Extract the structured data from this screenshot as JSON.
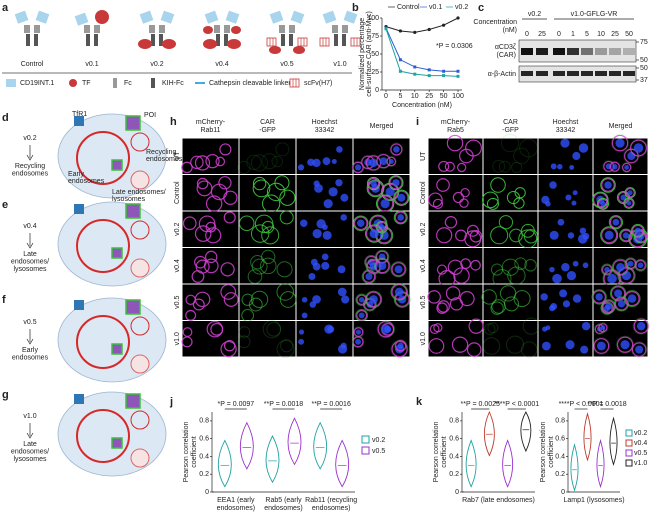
{
  "panel_labels": [
    "a",
    "b",
    "c",
    "d",
    "e",
    "f",
    "g",
    "h",
    "i",
    "j",
    "k"
  ],
  "panel_a": {
    "constructs": [
      "Control",
      "v0.1",
      "v0.2",
      "v0.4",
      "v0.5",
      "v1.0"
    ],
    "label_colors": [
      "#222222",
      "#2c5fd6",
      "#1fa3a3",
      "#c0392b",
      "#9b30d0",
      "#222222"
    ],
    "legend": [
      "CD19INT.1",
      "TF",
      "Fc",
      "KIH-Fc",
      "Cathepsin cleavable linker",
      "scFv(H7)"
    ]
  },
  "panel_b": {
    "type": "line",
    "y_label": [
      "Normalized percentage",
      "cell-surface CAR (anti-Myc)"
    ],
    "x_label": "Concentration (nM)",
    "categories": [
      "0",
      "5",
      "10",
      "25",
      "50",
      "100"
    ],
    "series": [
      {
        "name": "Control",
        "color": "#222222",
        "values": [
          88,
          82,
          80,
          84,
          90,
          100
        ]
      },
      {
        "name": "v0.1",
        "color": "#2c5fd6",
        "values": [
          86,
          42,
          32,
          28,
          26,
          26
        ]
      },
      {
        "name": "v0.2",
        "color": "#1fa3a3",
        "values": [
          85,
          26,
          22,
          20,
          20,
          19
        ]
      }
    ],
    "ylim": [
      0,
      100
    ],
    "yticks": [
      0,
      25,
      50,
      75,
      100
    ],
    "annotation": "*P = 0.0306"
  },
  "panel_c": {
    "concentration_label": [
      "Concentration",
      "(nM)"
    ],
    "groups": [
      {
        "name": "v0.2",
        "lanes": [
          "0",
          "25"
        ]
      },
      {
        "name": "v1.0-GFLG-VR",
        "lanes": [
          "0",
          "1",
          "5",
          "10",
          "25",
          "50"
        ]
      }
    ],
    "blots": [
      {
        "label": [
          "αCD3ζ",
          "(CAR)"
        ],
        "markers": [
          "75",
          "50"
        ]
      },
      {
        "label": [
          "α-β-Actin"
        ],
        "markers": [
          "50",
          "37"
        ]
      }
    ]
  },
  "panel_d": {
    "construct": "v0.2",
    "destination": [
      "Recycling",
      "endosomes"
    ],
    "tfr1": "TfR1",
    "poi": "POI",
    "recycling": [
      "Recycling",
      "endosomes"
    ],
    "early": [
      "Early",
      "endosomes"
    ],
    "late": [
      "Late endosomes/",
      "lysosomes"
    ]
  },
  "panel_e": {
    "construct": "v0.4",
    "destination": [
      "Late",
      "endosomes/",
      "lysosomes"
    ]
  },
  "panel_f": {
    "construct": "v0.5",
    "destination": [
      "Early",
      "endosomes"
    ]
  },
  "panel_g": {
    "construct": "v1.0",
    "destination": [
      "Late",
      "endosomes/",
      "lysosomes"
    ]
  },
  "panel_h": {
    "channels": [
      [
        "mCherry-",
        "Rab11"
      ],
      [
        "CAR",
        "-GFP"
      ],
      [
        "Hoechst",
        "33342"
      ],
      [
        "Merged"
      ]
    ],
    "rows": [
      "UT",
      "Control",
      "v0.2",
      "v0.4",
      "v0.5",
      "v1.0"
    ]
  },
  "panel_i": {
    "channels": [
      [
        "mCherry-",
        "Rab5"
      ],
      [
        "CAR",
        "-GFP"
      ],
      [
        "Hoechst",
        "33342"
      ],
      [
        "Merged"
      ]
    ],
    "rows": [
      "UT",
      "Control",
      "v0.2",
      "v0.4",
      "v0.5",
      "v1.0"
    ]
  },
  "panel_j": {
    "type": "violin",
    "y_label": [
      "Pearson correlation",
      "coefficient"
    ],
    "categories": [
      [
        "EEA1 (early",
        "endosomes)"
      ],
      [
        "Rab5 (early",
        "endosomes)"
      ],
      [
        "Rab11 (recycling",
        "endosomes)"
      ]
    ],
    "series": [
      {
        "name": "v0.2",
        "color": "#1fa3a3",
        "medians": [
          0.3,
          0.35,
          0.5
        ]
      },
      {
        "name": "v0.5",
        "color": "#9b30d0",
        "medians": [
          0.5,
          0.55,
          0.3
        ]
      }
    ],
    "ylim": [
      0,
      0.9
    ],
    "yticks": [
      0,
      0.2,
      0.4,
      0.6,
      0.8
    ],
    "annotations": [
      "*P = 0.0097",
      "**P = 0.0018",
      "**P = 0.0016"
    ]
  },
  "panel_k": {
    "type": "violin",
    "series": [
      {
        "name": "v0.2",
        "color": "#1fa3a3"
      },
      {
        "name": "v0.4",
        "color": "#c0392b"
      },
      {
        "name": "v0.5",
        "color": "#9b30d0"
      },
      {
        "name": "v1.0",
        "color": "#222222"
      }
    ],
    "charts": [
      {
        "y_label": [
          "Pearson correlation",
          "coefficient"
        ],
        "category": "Rab7 (late endosomes)",
        "medians": [
          0.3,
          0.65,
          0.3,
          0.7
        ],
        "ylim": [
          0,
          0.9
        ],
        "yticks": [
          0,
          0.2,
          0.4,
          0.6,
          0.8
        ],
        "annotations": [
          "**P = 0.0025",
          "****P < 0.0001"
        ]
      },
      {
        "y_label": [
          "Pearson correlation",
          "coefficient"
        ],
        "category": "Lamp1 (lysosomes)",
        "medians": [
          0.25,
          0.6,
          0.3,
          0.55
        ],
        "ylim": [
          0,
          0.9
        ],
        "yticks": [
          0,
          0.2,
          0.4,
          0.6,
          0.8
        ],
        "annotations": [
          "****P < 0.0001",
          "**P = 0.0018"
        ]
      }
    ]
  }
}
